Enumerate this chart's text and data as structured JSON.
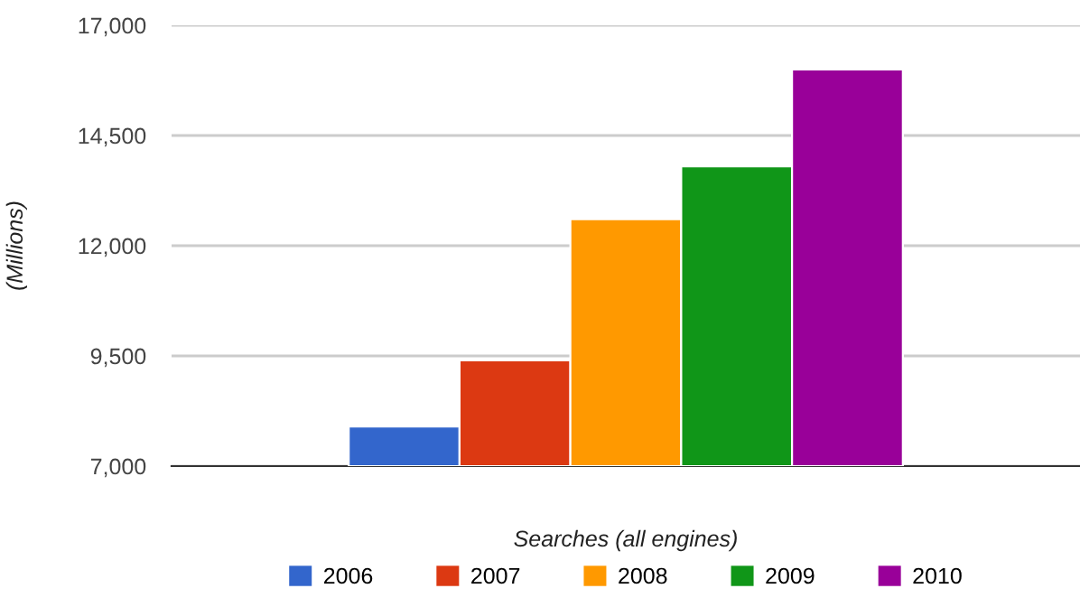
{
  "chart_data": {
    "type": "bar",
    "xlabel": "Searches (all engines)",
    "ylabel": "(Millions)",
    "categories": [
      null
    ],
    "series": [
      {
        "name": "2006",
        "color": "#3366cc",
        "values": [
          7900
        ]
      },
      {
        "name": "2007",
        "color": "#dc3912",
        "values": [
          9400
        ]
      },
      {
        "name": "2008",
        "color": "#ff9900",
        "values": [
          12600
        ]
      },
      {
        "name": "2009",
        "color": "#109618",
        "values": [
          13800
        ]
      },
      {
        "name": "2010",
        "color": "#990099",
        "values": [
          16000
        ]
      }
    ],
    "ylim": [
      7000,
      17000
    ],
    "yticks": [
      {
        "value": 7000,
        "label": "7,000"
      },
      {
        "value": 9500,
        "label": "9,500"
      },
      {
        "value": 12000,
        "label": "12,000"
      },
      {
        "value": 14500,
        "label": "14,500"
      },
      {
        "value": 17000,
        "label": "17,000"
      }
    ],
    "grid": "y",
    "legend": "bottom"
  }
}
